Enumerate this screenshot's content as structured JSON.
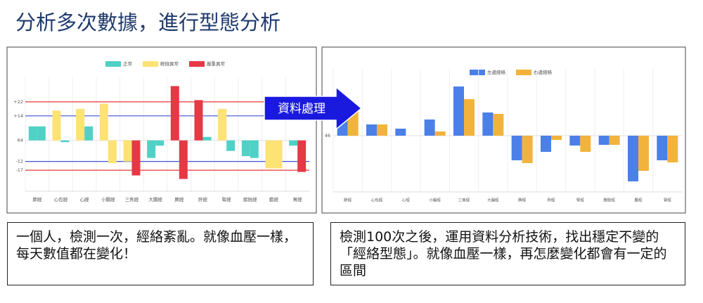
{
  "title": "分析多次數據，進行型態分析",
  "arrow_label": "資料處理",
  "captions": [
    "一個人，檢測一次，經絡紊亂。就像血壓一樣，每天數值都在變化！",
    "檢測100次之後，運用資料分析技術，找出穩定不變的「經絡型態」。就像血壓一樣，再怎麼變化都會有一定的區間"
  ],
  "chart_data": [
    {
      "type": "bar",
      "legend": [
        {
          "name": "正常",
          "color": "#4fd1c5"
        },
        {
          "name": "輕微異常",
          "color": "#fde274"
        },
        {
          "name": "嚴重異常",
          "color": "#e53945"
        }
      ],
      "categories": [
        "肺經",
        "心包經",
        "心經",
        "小腸經",
        "三焦經",
        "大腸經",
        "脾經",
        "肝經",
        "腎經",
        "膀胱經",
        "膽經",
        "胃經"
      ],
      "series": [
        {
          "values": [
            8,
            17,
            18,
            21,
            -12,
            -10,
            31,
            23,
            18,
            -9,
            -16,
            -3
          ],
          "colors": [
            "#4fd1c5",
            "#fde274",
            "#fde274",
            "#fde274",
            "#fde274",
            "#4fd1c5",
            "#e53945",
            "#e53945",
            "#fde274",
            "#4fd1c5",
            "#fde274",
            "#4fd1c5"
          ]
        },
        {
          "values": [
            8,
            -1,
            8,
            -13,
            -20,
            -3,
            -22,
            2,
            -6,
            -10,
            -16,
            -18
          ],
          "colors": [
            "#4fd1c5",
            "#4fd1c5",
            "#4fd1c5",
            "#fde274",
            "#e53945",
            "#4fd1c5",
            "#e53945",
            "#4fd1c5",
            "#4fd1c5",
            "#4fd1c5",
            "#fde274",
            "#e53945"
          ]
        }
      ],
      "ylim": [
        -29,
        36
      ],
      "yticks": [
        {
          "value": 22,
          "label": "+22"
        },
        {
          "value": 14,
          "label": "+14"
        },
        {
          "value": 0,
          "label": "64"
        },
        {
          "value": -12,
          "label": "-12"
        },
        {
          "value": -17,
          "label": "-17"
        }
      ],
      "tick_colors": [
        "#e53935",
        "#3f51d5",
        "#e6e6e6",
        "#3f51d5",
        "#e53935"
      ]
    },
    {
      "type": "bar",
      "legend": [
        {
          "name": "左邊經絡",
          "color": "#4a80e8"
        },
        {
          "name": "右邊經絡",
          "color": "#f2b33d"
        }
      ],
      "categories": [
        "肺經",
        "心包經",
        "心經",
        "小腸經",
        "三焦經",
        "大腸經",
        "脾經",
        "肝經",
        "腎經",
        "膀胱經",
        "膽經",
        "胃經"
      ],
      "series": [
        {
          "values": [
            33,
            16,
            10,
            23,
            70,
            33,
            -35,
            -23,
            -14,
            -13,
            -65,
            -35
          ],
          "colors": [
            "#4a80e8",
            "#4a80e8",
            "#4a80e8",
            "#4a80e8",
            "#4a80e8",
            "#4a80e8",
            "#4a80e8",
            "#4a80e8",
            "#4a80e8",
            "#4a80e8",
            "#4a80e8",
            "#4a80e8"
          ]
        },
        {
          "values": [
            41,
            16,
            0,
            6,
            52,
            31,
            -39,
            -6,
            -23,
            -13,
            -50,
            -38
          ],
          "colors": [
            "#f2b33d",
            "#f2b33d",
            "#f2b33d",
            "#f2b33d",
            "#f2b33d",
            "#f2b33d",
            "#f2b33d",
            "#f2b33d",
            "#f2b33d",
            "#f2b33d",
            "#f2b33d",
            "#f2b33d"
          ]
        }
      ],
      "ylim": [
        -80,
        95
      ],
      "yticks": [
        {
          "value": 0,
          "label": "46"
        }
      ],
      "tick_colors": [
        "#e6e6e6"
      ]
    }
  ]
}
